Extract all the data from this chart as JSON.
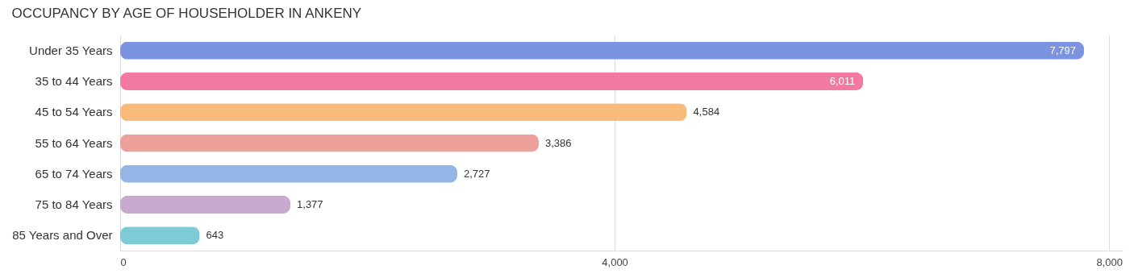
{
  "chart_data": {
    "type": "bar",
    "orientation": "horizontal",
    "title": "OCCUPANCY BY AGE OF HOUSEHOLDER IN ANKENY",
    "categories": [
      "Under 35 Years",
      "35 to 44 Years",
      "45 to 54 Years",
      "55 to 64 Years",
      "65 to 74 Years",
      "75 to 84 Years",
      "85 Years and Over"
    ],
    "values": [
      7797,
      6011,
      4584,
      3386,
      2727,
      1377,
      643
    ],
    "value_labels": [
      "7,797",
      "6,011",
      "4,584",
      "3,386",
      "2,727",
      "1,377",
      "643"
    ],
    "colors": [
      "#7b93e0",
      "#f27aa0",
      "#f8bb7a",
      "#eea09a",
      "#93b6e6",
      "#c9a9d0",
      "#7dcbd4"
    ],
    "xlim": [
      0,
      8110
    ],
    "xticks": [
      0,
      {
        "value": 4000,
        "label": "4,000"
      },
      {
        "value": 8000,
        "label": "8,000"
      }
    ],
    "grid": "x"
  }
}
